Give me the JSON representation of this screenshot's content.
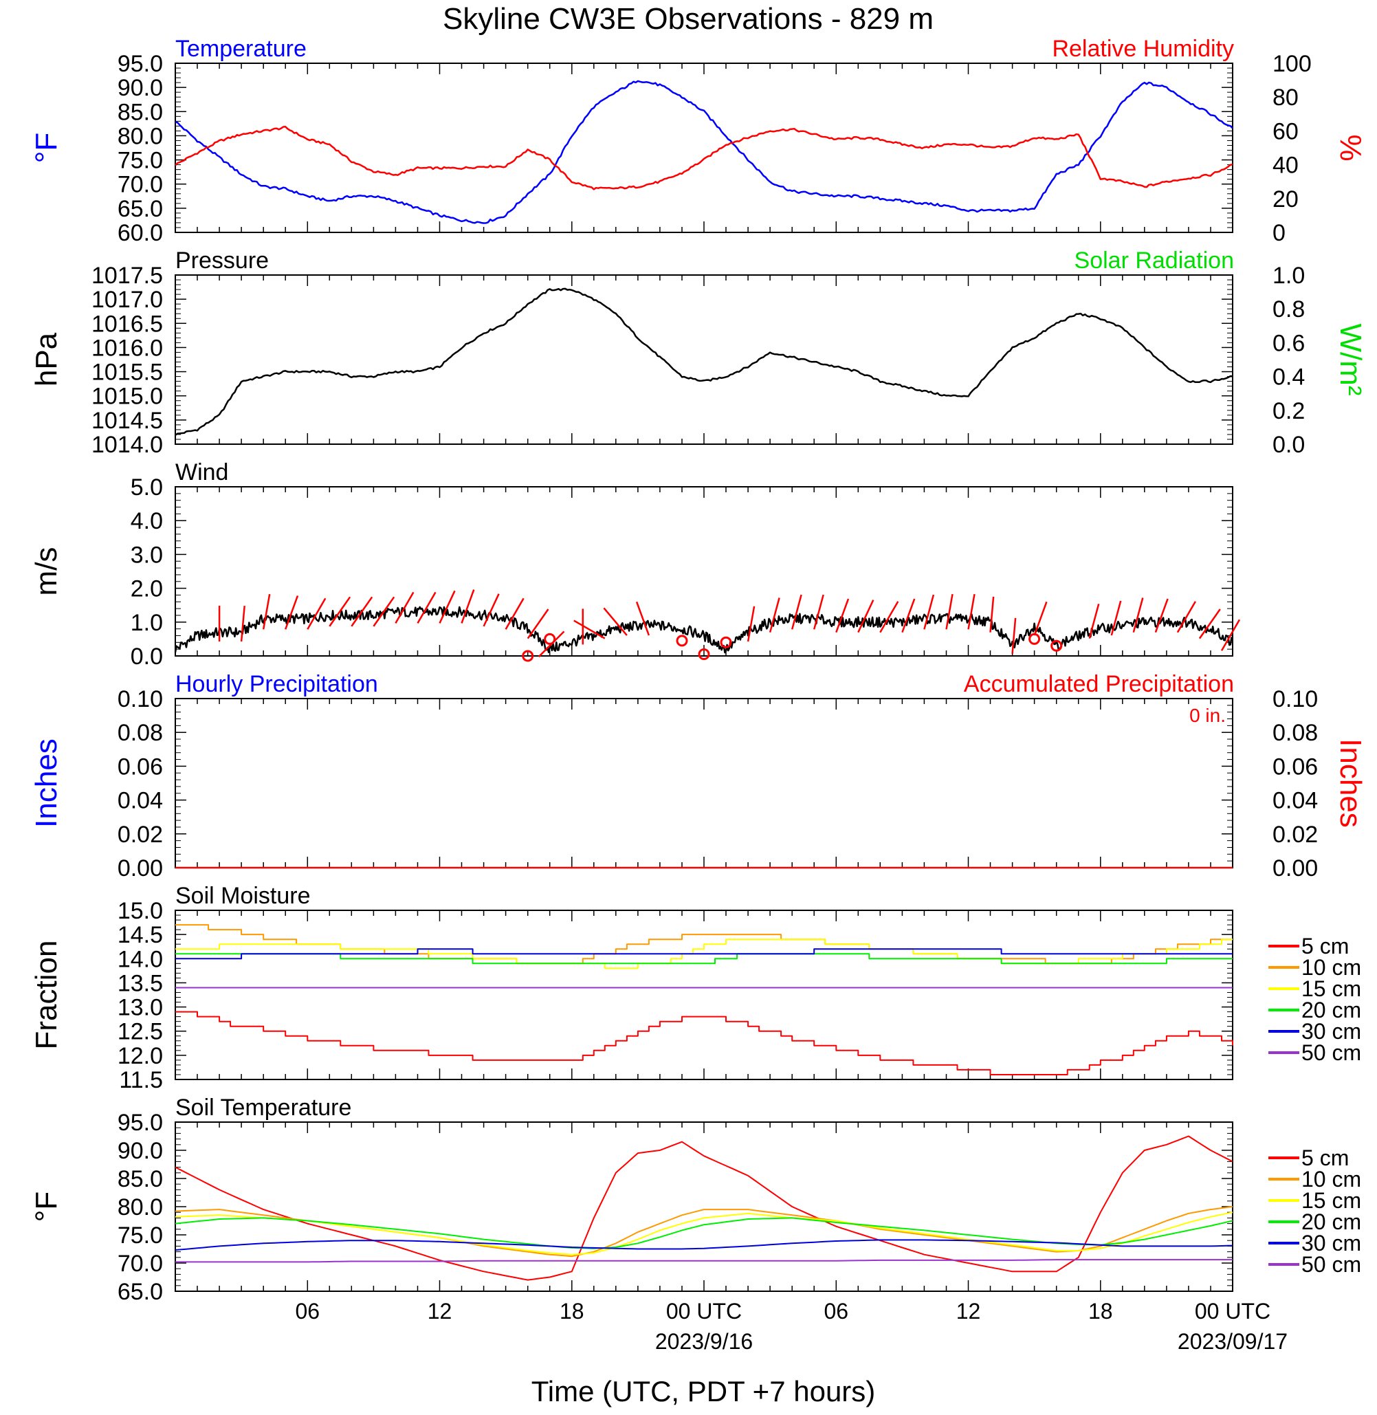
{
  "title": "Skyline CW3E Observations - 829 m",
  "x_axis": {
    "label": "Time (UTC, PDT +7 hours)",
    "ticks": [
      "06",
      "12",
      "18",
      "00 UTC",
      "06",
      "12",
      "18",
      "00 UTC"
    ],
    "dates": [
      "2023/9/16",
      "2023/09/17"
    ]
  },
  "legend": {
    "labels": [
      "5 cm",
      "10 cm",
      "15 cm",
      "20 cm",
      "30 cm",
      "50 cm"
    ],
    "colors": [
      "#ff0000",
      "#ff9900",
      "#ffff00",
      "#00ee00",
      "#0000dd",
      "#9933cc"
    ]
  },
  "chart_data": [
    {
      "type": "line",
      "title_left": "Temperature",
      "title_right": "Relative Humidity",
      "ylabel_left": "°F",
      "ylabel_right": "%",
      "ylim_left": [
        60,
        95
      ],
      "ylim_right": [
        0,
        100
      ],
      "yticks_left": [
        "95.0",
        "90.0",
        "85.0",
        "80.0",
        "75.0",
        "70.0",
        "65.0",
        "60.0"
      ],
      "yticks_right": [
        "100",
        "80",
        "60",
        "40",
        "20",
        "0"
      ],
      "x_hours": [
        0,
        1,
        2,
        3,
        4,
        5,
        6,
        7,
        8,
        9,
        10,
        11,
        12,
        13,
        14,
        15,
        16,
        17,
        18,
        19,
        20,
        21,
        22,
        23,
        24,
        25,
        26,
        27,
        28,
        29,
        30,
        31,
        32,
        33,
        34,
        35,
        36,
        37,
        38,
        39,
        40,
        41,
        42,
        43,
        44,
        45,
        46,
        47,
        48
      ],
      "series": [
        {
          "name": "Temperature",
          "color": "#0000ff",
          "axis": "left",
          "values": [
            83,
            79,
            75.5,
            72,
            69.5,
            69,
            67.5,
            66.5,
            67.5,
            67.5,
            66.5,
            65,
            63.5,
            62.5,
            62,
            63.5,
            68,
            72,
            80,
            86,
            89,
            91.5,
            90.5,
            88,
            85,
            80,
            75,
            70.5,
            68.5,
            68,
            67.5,
            67.5,
            67,
            66.5,
            66,
            65.5,
            64.5,
            64.5,
            64.5,
            65,
            72,
            74,
            80,
            87,
            91,
            90,
            87,
            84.5,
            81.5
          ]
        },
        {
          "name": "Relative Humidity",
          "color": "#ff0000",
          "axis": "right",
          "values": [
            40,
            47,
            54,
            58,
            60,
            62,
            55,
            52,
            42,
            36,
            34,
            38,
            38,
            38,
            39,
            39,
            49,
            43,
            30,
            26,
            26,
            27,
            30,
            35,
            43,
            52,
            56,
            60,
            61,
            58,
            55,
            56,
            55,
            52,
            50,
            52,
            52,
            50,
            51,
            56,
            55,
            58,
            32,
            30,
            27,
            30,
            32,
            34,
            40
          ]
        }
      ]
    },
    {
      "type": "line",
      "title_left": "Pressure",
      "title_right": "Solar Radiation",
      "ylabel_left": "hPa",
      "ylabel_right": "W/m²",
      "ylim_left": [
        1014.0,
        1017.5
      ],
      "ylim_right": [
        0,
        1.0
      ],
      "yticks_left": [
        "1017.5",
        "1017.0",
        "1016.5",
        "1016.0",
        "1015.5",
        "1015.0",
        "1014.5",
        "1014.0"
      ],
      "yticks_right": [
        "1.0",
        "0.8",
        "0.6",
        "0.4",
        "0.2",
        "0.0"
      ],
      "x_hours": [
        0,
        1,
        2,
        3,
        4,
        5,
        6,
        7,
        8,
        9,
        10,
        11,
        12,
        13,
        14,
        15,
        16,
        17,
        18,
        19,
        20,
        21,
        22,
        23,
        24,
        25,
        26,
        27,
        28,
        29,
        30,
        31,
        32,
        33,
        34,
        35,
        36,
        37,
        38,
        39,
        40,
        41,
        42,
        43,
        44,
        45,
        46,
        47,
        48
      ],
      "series": [
        {
          "name": "Pressure",
          "color": "#000000",
          "axis": "left",
          "values": [
            1014.2,
            1014.3,
            1014.6,
            1015.3,
            1015.4,
            1015.5,
            1015.5,
            1015.5,
            1015.4,
            1015.4,
            1015.5,
            1015.5,
            1015.6,
            1016.0,
            1016.3,
            1016.5,
            1016.9,
            1017.2,
            1017.2,
            1017.0,
            1016.7,
            1016.2,
            1015.8,
            1015.4,
            1015.3,
            1015.4,
            1015.6,
            1015.9,
            1015.8,
            1015.7,
            1015.6,
            1015.5,
            1015.3,
            1015.2,
            1015.1,
            1015.0,
            1015.0,
            1015.5,
            1016.0,
            1016.2,
            1016.5,
            1016.7,
            1016.6,
            1016.4,
            1016.0,
            1015.6,
            1015.3,
            1015.3,
            1015.4
          ]
        }
      ]
    },
    {
      "type": "line",
      "title_left": "Wind",
      "ylabel_left": "m/s",
      "ylim_left": [
        0,
        5.0
      ],
      "yticks_left": [
        "5.0",
        "4.0",
        "3.0",
        "2.0",
        "1.0",
        "0.0"
      ],
      "x_hours": [
        0,
        1,
        2,
        3,
        4,
        5,
        6,
        7,
        8,
        9,
        10,
        11,
        12,
        13,
        14,
        15,
        16,
        17,
        18,
        19,
        20,
        21,
        22,
        23,
        24,
        25,
        26,
        27,
        28,
        29,
        30,
        31,
        32,
        33,
        34,
        35,
        36,
        37,
        38,
        39,
        40,
        41,
        42,
        43,
        44,
        45,
        46,
        47,
        48
      ],
      "series": [
        {
          "name": "Wind speed",
          "color": "#000000",
          "axis": "left",
          "values": [
            0.2,
            0.6,
            0.7,
            0.7,
            1.1,
            1.1,
            1.1,
            1.2,
            1.2,
            1.2,
            1.3,
            1.3,
            1.3,
            1.3,
            1.2,
            1.1,
            0.8,
            0.2,
            0.4,
            0.6,
            0.8,
            0.9,
            0.9,
            0.8,
            0.6,
            0.2,
            0.7,
            1.0,
            1.1,
            1.1,
            1.0,
            1.0,
            1.0,
            1.0,
            1.1,
            1.1,
            1.1,
            1.0,
            0.3,
            0.9,
            0.3,
            0.6,
            0.8,
            0.9,
            1.0,
            1.0,
            1.0,
            0.8,
            0.4
          ]
        },
        {
          "name": "Wind barbs",
          "color": "#ff0000",
          "axis": "left",
          "barb_hours": [
            2,
            3,
            4,
            5,
            6,
            7,
            8,
            9,
            10,
            11,
            12,
            13,
            14,
            15,
            16,
            16.5,
            18.5,
            19.5,
            20.5,
            21.5,
            26,
            27,
            28,
            29,
            30,
            31,
            32,
            33,
            34,
            35,
            36,
            37,
            38,
            39,
            41.5,
            42.5,
            43.5,
            44.5,
            45.5,
            46.5,
            47.5
          ],
          "barb_dir_deg": [
            0,
            5,
            10,
            20,
            30,
            35,
            35,
            35,
            30,
            30,
            25,
            20,
            25,
            30,
            35,
            45,
            0,
            -60,
            -40,
            -20,
            10,
            15,
            15,
            15,
            20,
            25,
            30,
            20,
            15,
            10,
            10,
            5,
            5,
            20,
            15,
            15,
            15,
            20,
            30,
            35,
            30
          ],
          "calm_hours": [
            16,
            17,
            23,
            24,
            25,
            39,
            40
          ],
          "calm_values": [
            0,
            0.5,
            0.45,
            0.05,
            0.4,
            0.5,
            0.3
          ]
        }
      ]
    },
    {
      "type": "line",
      "title_left": "Hourly Precipitation",
      "title_right": "Accumulated Precipitation",
      "annotation": "0 in.",
      "ylabel_left": "Inches",
      "ylabel_right": "Inches",
      "ylim_left": [
        0,
        0.1
      ],
      "ylim_right": [
        0,
        0.1
      ],
      "yticks_left": [
        "0.10",
        "0.08",
        "0.06",
        "0.04",
        "0.02",
        "0.00"
      ],
      "yticks_right": [
        "0.10",
        "0.08",
        "0.06",
        "0.04",
        "0.02",
        "0.00"
      ],
      "x_hours": [
        0,
        48
      ],
      "series": [
        {
          "name": "Accumulated Precipitation",
          "color": "#ff0000",
          "axis": "right",
          "values": [
            0,
            0
          ]
        }
      ]
    },
    {
      "type": "line",
      "title_left": "Soil Moisture",
      "ylabel_left": "Fraction",
      "ylim_left": [
        11.5,
        15.0
      ],
      "yticks_left": [
        "15.0",
        "14.5",
        "14.0",
        "13.5",
        "13.0",
        "12.5",
        "12.0",
        "11.5"
      ],
      "x_hours": [
        0,
        2,
        4,
        6,
        8,
        10,
        12,
        14,
        16,
        18,
        20,
        22,
        24,
        26,
        28,
        30,
        32,
        34,
        36,
        38,
        40,
        42,
        44,
        46,
        48
      ],
      "series": [
        {
          "name": "5 cm",
          "color": "#ff0000",
          "values": [
            12.9,
            12.7,
            12.5,
            12.3,
            12.2,
            12.1,
            12.0,
            11.9,
            11.85,
            11.9,
            12.3,
            12.7,
            12.8,
            12.6,
            12.3,
            12.1,
            11.9,
            11.8,
            11.7,
            11.6,
            11.6,
            11.85,
            12.2,
            12.5,
            12.2
          ]
        },
        {
          "name": "10 cm",
          "color": "#ff9900",
          "values": [
            14.7,
            14.6,
            14.4,
            14.3,
            14.2,
            14.1,
            14.0,
            14.0,
            13.9,
            13.9,
            14.2,
            14.4,
            14.5,
            14.5,
            14.4,
            14.3,
            14.2,
            14.1,
            14.0,
            14.0,
            13.9,
            13.9,
            14.1,
            14.3,
            14.4
          ]
        },
        {
          "name": "15 cm",
          "color": "#ffff00",
          "values": [
            14.2,
            14.25,
            14.3,
            14.3,
            14.2,
            14.2,
            14.1,
            14.0,
            13.9,
            13.9,
            13.8,
            13.9,
            14.3,
            14.4,
            14.4,
            14.3,
            14.2,
            14.1,
            14.0,
            13.9,
            13.9,
            14.0,
            14.1,
            14.2,
            14.4
          ]
        },
        {
          "name": "20 cm",
          "color": "#00ee00",
          "values": [
            14.1,
            14.1,
            14.1,
            14.1,
            14.0,
            14.0,
            14.0,
            13.9,
            13.9,
            13.9,
            13.9,
            13.9,
            13.9,
            14.1,
            14.1,
            14.1,
            14.0,
            14.0,
            14.0,
            13.9,
            13.9,
            13.9,
            13.9,
            14.0,
            14.0
          ]
        },
        {
          "name": "30 cm",
          "color": "#0000dd",
          "values": [
            14.0,
            14.0,
            14.1,
            14.1,
            14.1,
            14.1,
            14.2,
            14.1,
            14.1,
            14.1,
            14.1,
            14.1,
            14.1,
            14.1,
            14.1,
            14.2,
            14.2,
            14.2,
            14.2,
            14.1,
            14.1,
            14.1,
            14.1,
            14.1,
            14.1
          ]
        },
        {
          "name": "50 cm",
          "color": "#9933cc",
          "values": [
            13.4,
            13.4,
            13.4,
            13.4,
            13.4,
            13.4,
            13.4,
            13.4,
            13.4,
            13.4,
            13.4,
            13.4,
            13.4,
            13.4,
            13.4,
            13.4,
            13.4,
            13.4,
            13.4,
            13.4,
            13.4,
            13.4,
            13.4,
            13.4,
            13.4
          ]
        }
      ]
    },
    {
      "type": "line",
      "title_left": "Soil Temperature",
      "ylabel_left": "°F",
      "ylim_left": [
        65,
        95
      ],
      "yticks_left": [
        "95.0",
        "90.0",
        "85.0",
        "80.0",
        "75.0",
        "70.0",
        "65.0"
      ],
      "x_hours": [
        0,
        2,
        4,
        6,
        8,
        10,
        12,
        14,
        16,
        17,
        18,
        19,
        20,
        21,
        22,
        23,
        24,
        26,
        28,
        30,
        32,
        34,
        36,
        38,
        40,
        41,
        42,
        43,
        44,
        45,
        46,
        47,
        48
      ],
      "series": [
        {
          "name": "5 cm",
          "color": "#ff0000",
          "values": [
            87,
            83,
            79.5,
            77,
            75,
            73,
            70.5,
            68.5,
            67,
            67.5,
            68.5,
            78,
            86,
            89.5,
            90,
            91.5,
            89,
            85.5,
            80,
            76.5,
            74,
            71.5,
            70,
            68.5,
            68.5,
            71,
            79,
            86,
            90,
            91,
            92.5,
            90,
            88
          ]
        },
        {
          "name": "10 cm",
          "color": "#ff9900",
          "values": [
            79.2,
            79.5,
            78.5,
            77.5,
            76.5,
            75.5,
            74.5,
            73,
            72,
            71.5,
            71.2,
            72,
            73.5,
            75.5,
            77,
            78.5,
            79.5,
            79.5,
            78.5,
            77.5,
            76,
            75,
            74,
            73,
            72,
            72.2,
            73,
            74.5,
            76,
            77.5,
            78.8,
            79.5,
            80
          ]
        },
        {
          "name": "15 cm",
          "color": "#ffff00",
          "values": [
            78.2,
            78.5,
            78,
            77.5,
            76.5,
            75.5,
            74.5,
            73.2,
            72.2,
            71.8,
            71.5,
            71.8,
            72.8,
            74.2,
            75.8,
            77,
            78,
            78.8,
            78,
            77.5,
            76.2,
            75.2,
            74.2,
            73.2,
            72.2,
            72.2,
            72.6,
            73.5,
            74.8,
            76,
            77.2,
            78.2,
            79
          ]
        },
        {
          "name": "20 cm",
          "color": "#00ee00",
          "values": [
            77,
            77.8,
            78,
            77.5,
            76.8,
            76,
            75.2,
            74.2,
            73.4,
            73,
            72.7,
            72.6,
            72.8,
            73.5,
            74.6,
            75.8,
            76.8,
            77.8,
            78,
            77.2,
            76.5,
            75.8,
            75,
            74.2,
            73.5,
            73.3,
            73.2,
            73.6,
            74.2,
            75,
            75.8,
            76.6,
            77.5
          ]
        },
        {
          "name": "30 cm",
          "color": "#0000dd",
          "values": [
            72.3,
            73,
            73.5,
            73.8,
            74,
            74,
            73.8,
            73.5,
            73.2,
            73,
            72.8,
            72.7,
            72.6,
            72.5,
            72.5,
            72.5,
            72.6,
            73,
            73.5,
            73.9,
            74.1,
            74.1,
            74,
            73.8,
            73.6,
            73.4,
            73.2,
            73,
            73,
            73,
            73,
            73,
            73.1
          ]
        },
        {
          "name": "50 cm",
          "color": "#9933cc",
          "values": [
            70.2,
            70.2,
            70.2,
            70.2,
            70.3,
            70.3,
            70.3,
            70.4,
            70.4,
            70.4,
            70.4,
            70.4,
            70.4,
            70.4,
            70.4,
            70.4,
            70.4,
            70.4,
            70.4,
            70.4,
            70.5,
            70.5,
            70.5,
            70.5,
            70.6,
            70.6,
            70.6,
            70.6,
            70.6,
            70.6,
            70.6,
            70.6,
            70.6
          ]
        }
      ]
    }
  ]
}
